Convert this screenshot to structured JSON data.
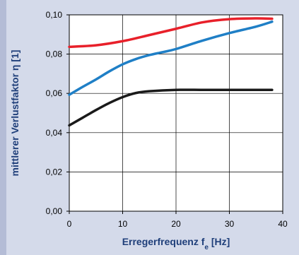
{
  "chart_data": {
    "type": "line",
    "xlabel": "Erregerfrequenz",
    "xlabel_sub": "e",
    "xlabel_prefix_symbol": "f",
    "xlabel_unit": " [Hz]",
    "ylabel": "mittlerer Verlustfaktor η [1]",
    "xlim": [
      0,
      40
    ],
    "ylim": [
      0,
      0.1
    ],
    "x_ticks": [
      0,
      10,
      20,
      30,
      40
    ],
    "y_ticks": [
      0.0,
      0.02,
      0.04,
      0.06,
      0.08,
      0.1
    ],
    "x_tick_labels": [
      "0",
      "10",
      "20",
      "30",
      "40"
    ],
    "y_tick_labels": [
      "0,00",
      "0,02",
      "0,04",
      "0,06",
      "0,08",
      "0,10"
    ],
    "grid": true,
    "series": [
      {
        "color": "#e8202a",
        "x": [
          0,
          5,
          10,
          15,
          20,
          25,
          30,
          35,
          38
        ],
        "y": [
          0.0837,
          0.0845,
          0.0866,
          0.0897,
          0.0929,
          0.0962,
          0.0978,
          0.0982,
          0.098
        ]
      },
      {
        "color": "#1f7fc6",
        "x": [
          0,
          2.5,
          5,
          7.5,
          10,
          12.5,
          15,
          17.5,
          20,
          25,
          30,
          35,
          38
        ],
        "y": [
          0.0593,
          0.0633,
          0.0671,
          0.0712,
          0.0748,
          0.0775,
          0.0795,
          0.081,
          0.0826,
          0.0869,
          0.0907,
          0.094,
          0.0965
        ]
      },
      {
        "color": "#1a1a1a",
        "x": [
          0,
          2.5,
          5,
          7.5,
          10,
          12.5,
          15,
          20,
          25,
          30,
          35,
          38
        ],
        "y": [
          0.0437,
          0.0476,
          0.0515,
          0.0551,
          0.0581,
          0.0602,
          0.0611,
          0.0618,
          0.0618,
          0.0618,
          0.0618,
          0.0618
        ]
      }
    ]
  }
}
